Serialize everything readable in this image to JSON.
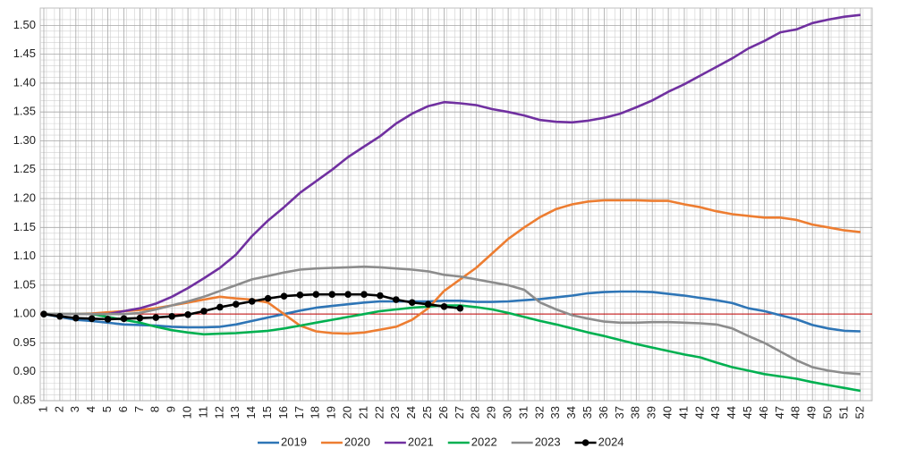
{
  "chart_data": {
    "type": "line",
    "categories": [
      "1",
      "2",
      "3",
      "4",
      "5",
      "6",
      "7",
      "8",
      "9",
      "10",
      "11",
      "12",
      "13",
      "14",
      "15",
      "16",
      "17",
      "18",
      "19",
      "20",
      "21",
      "22",
      "23",
      "24",
      "25",
      "26",
      "27",
      "28",
      "29",
      "30",
      "31",
      "32",
      "33",
      "34",
      "35",
      "36",
      "37",
      "38",
      "39",
      "40",
      "41",
      "42",
      "43",
      "44",
      "45",
      "46",
      "47",
      "48",
      "49",
      "50",
      "51",
      "52"
    ],
    "ylim": [
      0.85,
      1.53
    ],
    "yticks": [
      0.85,
      {
        "value": 0.9,
        "label": "0.90"
      },
      0.95,
      {
        "value": 1,
        "label": "1.00"
      },
      1.05,
      {
        "value": 1.1,
        "label": "1.10"
      },
      1.15,
      {
        "value": 1.2,
        "label": "1.20"
      },
      1.25,
      {
        "value": 1.3,
        "label": "1.30"
      },
      1.35,
      {
        "value": 1.4,
        "label": "1.40"
      },
      1.45,
      {
        "value": 1.5,
        "label": "1.50"
      }
    ],
    "grid": true,
    "reference_line": {
      "value": 1,
      "color": "#c00000"
    },
    "legend": "bottom",
    "series": [
      {
        "name": "2019",
        "color": "#2e75b6",
        "markers": false,
        "values": [
          1.0,
          0.995,
          0.99,
          0.988,
          0.985,
          0.982,
          0.981,
          0.98,
          0.978,
          0.977,
          0.977,
          0.978,
          0.982,
          0.988,
          0.994,
          1.0,
          1.006,
          1.011,
          1.014,
          1.017,
          1.02,
          1.022,
          1.022,
          1.022,
          1.022,
          1.023,
          1.023,
          1.021,
          1.021,
          1.022,
          1.024,
          1.026,
          1.029,
          1.032,
          1.036,
          1.038,
          1.039,
          1.039,
          1.038,
          1.035,
          1.032,
          1.028,
          1.024,
          1.019,
          1.01,
          1.005,
          0.998,
          0.991,
          0.981,
          0.975,
          0.971,
          0.97
        ]
      },
      {
        "name": "2020",
        "color": "#ed7d31",
        "markers": false,
        "values": [
          1.0,
          1.0,
          1.0,
          1.001,
          1.003,
          1.005,
          1.007,
          1.01,
          1.015,
          1.02,
          1.025,
          1.03,
          1.027,
          1.025,
          1.02,
          1.0,
          0.98,
          0.97,
          0.967,
          0.966,
          0.968,
          0.973,
          0.978,
          0.99,
          1.01,
          1.04,
          1.06,
          1.08,
          1.105,
          1.13,
          1.15,
          1.168,
          1.182,
          1.19,
          1.195,
          1.197,
          1.197,
          1.197,
          1.196,
          1.196,
          1.19,
          1.185,
          1.178,
          1.173,
          1.17,
          1.167,
          1.167,
          1.163,
          1.155,
          1.15,
          1.145,
          1.142
        ]
      },
      {
        "name": "2021",
        "color": "#7030a0",
        "markers": false,
        "values": [
          1.0,
          1.0,
          1.0,
          1.0,
          1.0,
          1.005,
          1.01,
          1.018,
          1.03,
          1.045,
          1.062,
          1.08,
          1.103,
          1.135,
          1.162,
          1.185,
          1.21,
          1.23,
          1.25,
          1.272,
          1.29,
          1.308,
          1.33,
          1.347,
          1.36,
          1.367,
          1.365,
          1.362,
          1.355,
          1.35,
          1.344,
          1.336,
          1.333,
          1.332,
          1.335,
          1.34,
          1.347,
          1.358,
          1.37,
          1.385,
          1.398,
          1.413,
          1.428,
          1.443,
          1.46,
          1.473,
          1.488,
          1.493,
          1.504,
          1.51,
          1.515,
          1.518
        ]
      },
      {
        "name": "2022",
        "color": "#00b050",
        "markers": false,
        "values": [
          1.0,
          1.0,
          1.0,
          1.0,
          0.995,
          0.99,
          0.985,
          0.978,
          0.972,
          0.968,
          0.965,
          0.966,
          0.967,
          0.969,
          0.971,
          0.975,
          0.98,
          0.985,
          0.99,
          0.995,
          1.0,
          1.005,
          1.008,
          1.011,
          1.013,
          1.015,
          1.015,
          1.012,
          1.008,
          1.002,
          0.995,
          0.988,
          0.982,
          0.975,
          0.968,
          0.962,
          0.955,
          0.948,
          0.942,
          0.936,
          0.93,
          0.925,
          0.916,
          0.908,
          0.902,
          0.896,
          0.892,
          0.888,
          0.882,
          0.877,
          0.872,
          0.867
        ]
      },
      {
        "name": "2023",
        "color": "#8c8c8c",
        "markers": false,
        "values": [
          1.0,
          1.0,
          1.0,
          1.0,
          1.0,
          1.0,
          1.002,
          1.008,
          1.015,
          1.022,
          1.03,
          1.04,
          1.05,
          1.06,
          1.066,
          1.072,
          1.077,
          1.079,
          1.08,
          1.081,
          1.082,
          1.081,
          1.079,
          1.077,
          1.074,
          1.068,
          1.065,
          1.06,
          1.055,
          1.05,
          1.042,
          1.02,
          1.008,
          0.998,
          0.992,
          0.987,
          0.985,
          0.985,
          0.986,
          0.986,
          0.985,
          0.984,
          0.982,
          0.975,
          0.962,
          0.95,
          0.935,
          0.92,
          0.908,
          0.902,
          0.898,
          0.896
        ]
      },
      {
        "name": "2024",
        "color": "#000000",
        "markers": true,
        "values": [
          1.0,
          0.996,
          0.993,
          0.992,
          0.991,
          0.992,
          0.993,
          0.994,
          0.996,
          0.999,
          1.005,
          1.012,
          1.017,
          1.022,
          1.027,
          1.031,
          1.033,
          1.034,
          1.034,
          1.034,
          1.034,
          1.032,
          1.025,
          1.02,
          1.017,
          1.013,
          1.01,
          null,
          null,
          null,
          null,
          null,
          null,
          null,
          null,
          null,
          null,
          null,
          null,
          null,
          null,
          null,
          null,
          null,
          null,
          null,
          null,
          null,
          null,
          null,
          null,
          null
        ]
      }
    ]
  }
}
